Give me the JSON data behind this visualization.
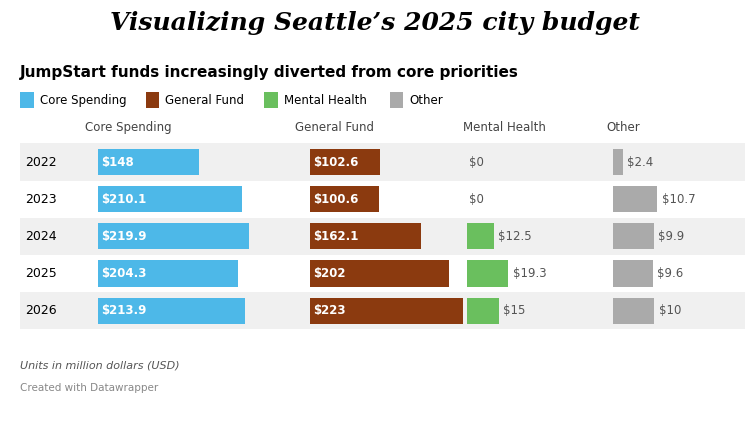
{
  "title": "Visualizing Seattle’s 2025 city budget",
  "subtitle": "JumpStart funds increasingly diverted from core priorities",
  "years": [
    "2022",
    "2023",
    "2024",
    "2025",
    "2026"
  ],
  "core_spending": [
    148.0,
    210.1,
    219.9,
    204.3,
    213.9
  ],
  "general_fund": [
    102.6,
    100.6,
    162.1,
    202.0,
    223.0
  ],
  "mental_health": [
    0,
    0,
    12.5,
    19.3,
    15.0
  ],
  "other": [
    2.4,
    10.7,
    9.9,
    9.6,
    10.0
  ],
  "color_core": "#4db8e8",
  "color_general": "#8b3a0f",
  "color_mental": "#6abf5e",
  "color_other": "#aaaaaa",
  "bg_color": "#ffffff",
  "col_headers": [
    "Core Spending",
    "General Fund",
    "Mental Health",
    "Other"
  ],
  "note": "Units in million dollars (USD)",
  "credit": "Created with Datawrapper",
  "max_core": 240,
  "max_general": 240,
  "max_mental": 25,
  "max_other": 13,
  "row_bg_odd": "#f0f0f0",
  "row_bg_even": "#ffffff"
}
